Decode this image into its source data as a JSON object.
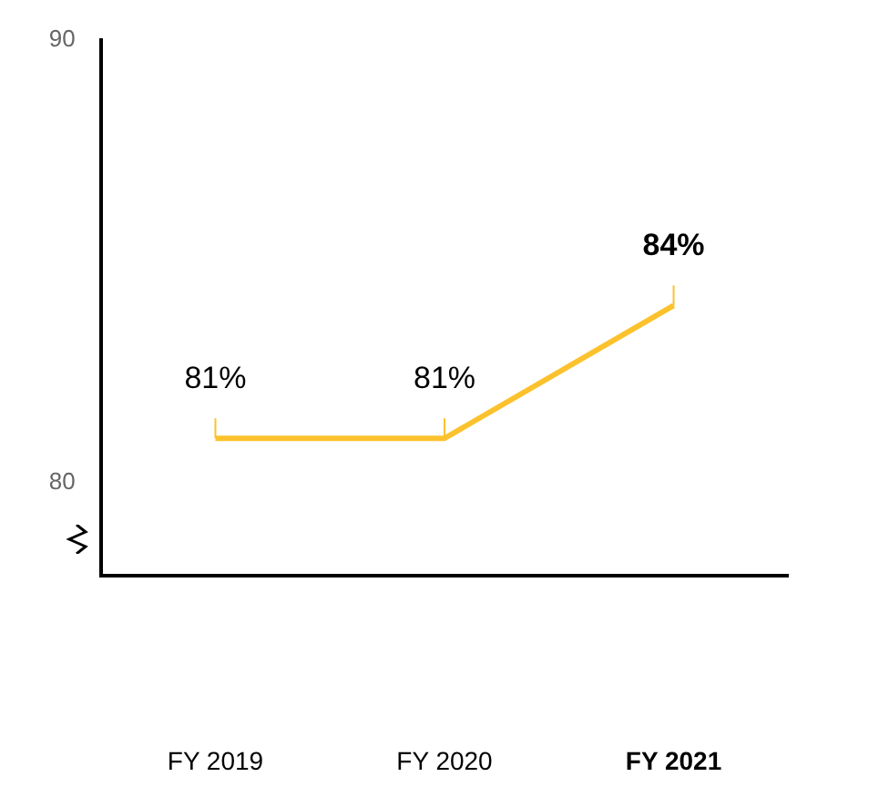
{
  "chart_data": {
    "type": "line",
    "categories": [
      "FY 2019",
      "FY 2020",
      "FY 2021"
    ],
    "series": [
      {
        "color": "#fcc22d",
        "values": [
          81,
          81,
          84
        ]
      }
    ],
    "value_labels": [
      "81%",
      "81%",
      "84%"
    ],
    "ylim": [
      77.9,
      90
    ],
    "yticks": [
      80,
      90
    ],
    "grid": false,
    "legend": false,
    "marker": "none",
    "line_style": "solid"
  }
}
